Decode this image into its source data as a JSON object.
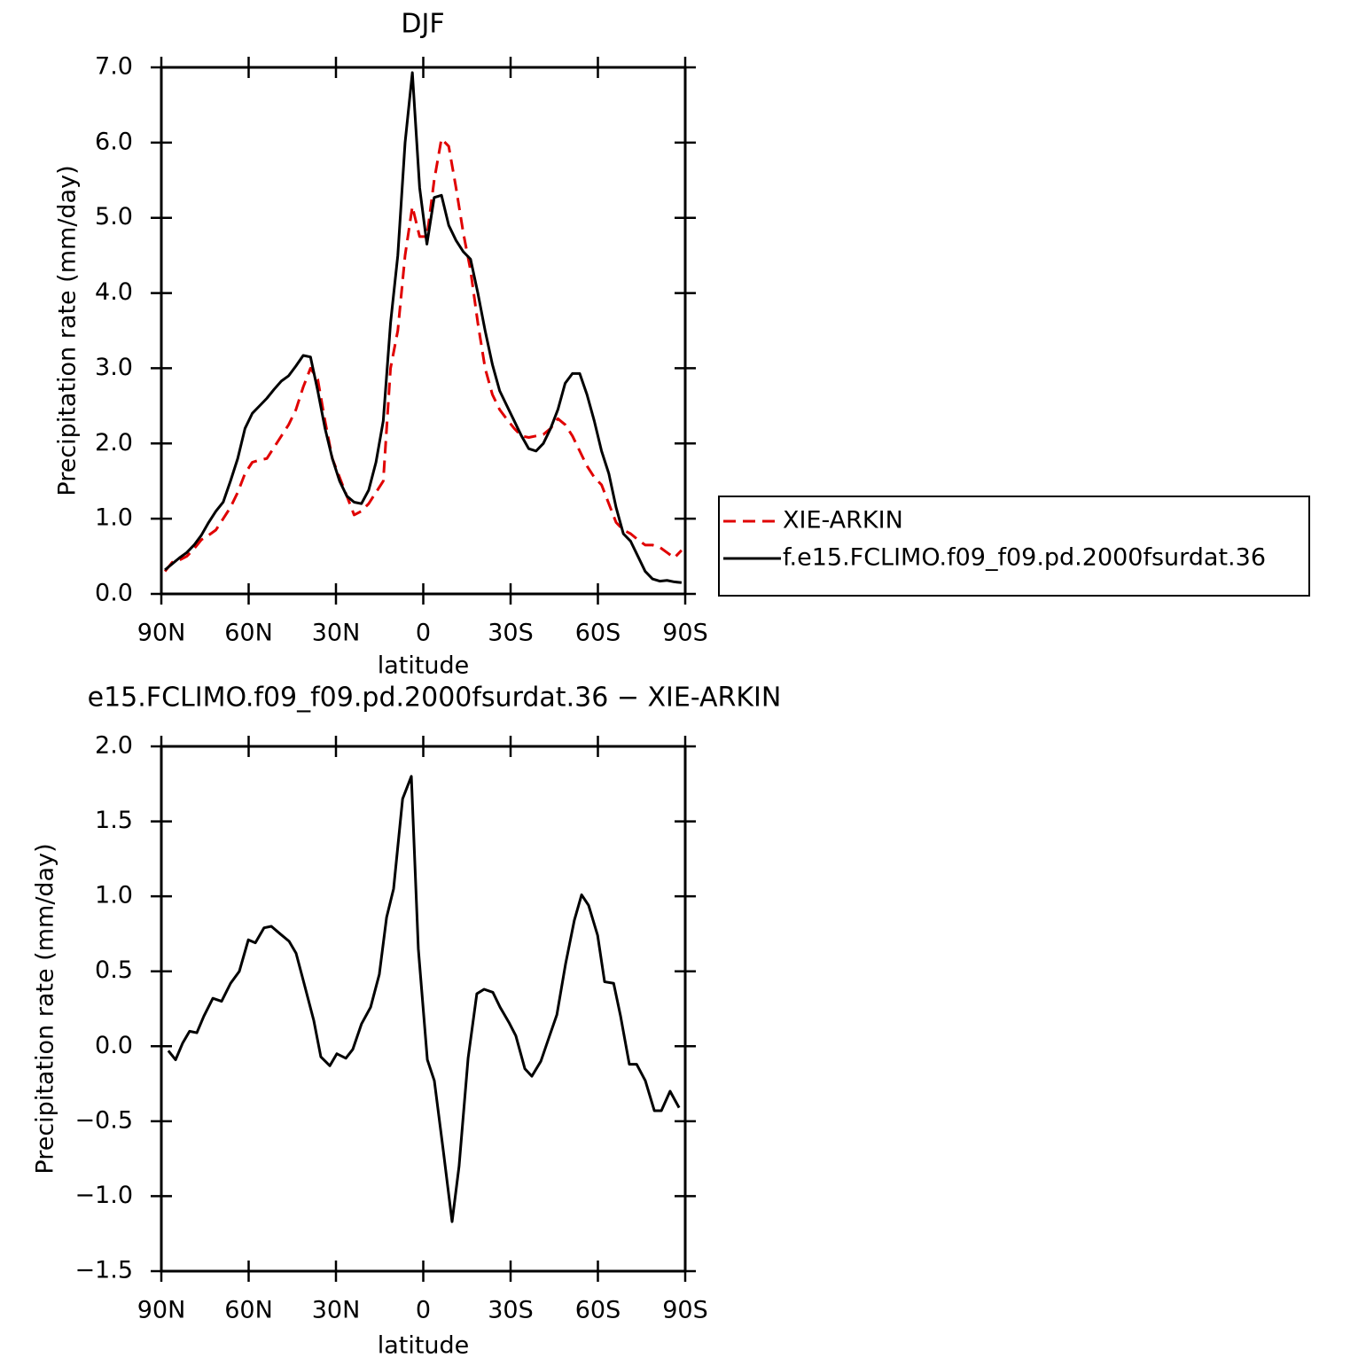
{
  "chart_data": [
    {
      "type": "line",
      "title": "DJF",
      "xlabel": "latitude",
      "ylabel": "Precipitation rate (mm/day)",
      "x": [
        88.75,
        86.25,
        83.75,
        81.25,
        78.75,
        76.25,
        73.75,
        71.25,
        68.75,
        66.25,
        63.75,
        61.25,
        58.75,
        56.25,
        53.75,
        51.25,
        48.75,
        46.25,
        43.75,
        41.25,
        38.75,
        36.25,
        33.75,
        31.25,
        28.75,
        26.25,
        23.75,
        21.25,
        18.75,
        16.25,
        13.75,
        11.25,
        8.75,
        6.25,
        3.75,
        1.25,
        -1.25,
        -3.75,
        -6.25,
        -8.75,
        -11.25,
        -13.75,
        -16.25,
        -18.75,
        -21.25,
        -23.75,
        -26.25,
        -28.75,
        -31.25,
        -33.75,
        -36.25,
        -38.75,
        -41.25,
        -43.75,
        -46.25,
        -48.75,
        -51.25,
        -53.75,
        -56.25,
        -58.75,
        -61.25,
        -63.75,
        -66.25,
        -68.75,
        -71.25,
        -73.75,
        -76.25,
        -78.75,
        -81.25,
        -83.75,
        -86.25,
        -88.75
      ],
      "series": [
        {
          "name": "XIE-ARKIN",
          "color": "#e00000",
          "dash": true,
          "values": [
            0.3,
            0.42,
            0.45,
            0.5,
            0.6,
            0.72,
            0.78,
            0.85,
            1.0,
            1.15,
            1.35,
            1.6,
            1.75,
            1.78,
            1.8,
            1.95,
            2.1,
            2.25,
            2.45,
            2.75,
            3.0,
            2.85,
            2.3,
            1.8,
            1.55,
            1.3,
            1.05,
            1.1,
            1.2,
            1.35,
            1.5,
            3.0,
            3.5,
            4.5,
            5.15,
            4.75,
            4.75,
            5.5,
            6.05,
            5.95,
            5.4,
            4.8,
            4.3,
            3.6,
            3.0,
            2.65,
            2.45,
            2.32,
            2.2,
            2.1,
            2.08,
            2.1,
            2.12,
            2.2,
            2.33,
            2.25,
            2.1,
            1.9,
            1.7,
            1.55,
            1.45,
            1.2,
            0.95,
            0.85,
            0.8,
            0.72,
            0.65,
            0.65,
            0.62,
            0.55,
            0.48,
            0.58
          ]
        },
        {
          "name": "f.e15.FCLIMO.f09_f09.pd.2000fsurdat.36",
          "color": "#000000",
          "dash": false,
          "values": [
            0.32,
            0.4,
            0.48,
            0.55,
            0.65,
            0.78,
            0.95,
            1.1,
            1.22,
            1.5,
            1.8,
            2.2,
            2.4,
            2.5,
            2.6,
            2.72,
            2.83,
            2.9,
            3.03,
            3.17,
            3.15,
            2.7,
            2.2,
            1.8,
            1.5,
            1.3,
            1.22,
            1.2,
            1.38,
            1.75,
            2.3,
            3.6,
            4.5,
            6.0,
            6.93,
            5.4,
            4.65,
            5.27,
            5.3,
            4.9,
            4.7,
            4.55,
            4.45,
            4.0,
            3.5,
            3.05,
            2.7,
            2.5,
            2.3,
            2.1,
            1.93,
            1.9,
            2.0,
            2.2,
            2.45,
            2.8,
            2.93,
            2.93,
            2.65,
            2.3,
            1.9,
            1.6,
            1.15,
            0.8,
            0.7,
            0.5,
            0.3,
            0.2,
            0.17,
            0.18,
            0.16,
            0.15
          ]
        }
      ],
      "xlim": [
        90,
        -90
      ],
      "xticks": [
        {
          "value": 90,
          "label": "90N"
        },
        {
          "value": 60,
          "label": "60N"
        },
        {
          "value": 30,
          "label": "30N"
        },
        0,
        {
          "value": -30,
          "label": "30S"
        },
        {
          "value": -60,
          "label": "60S"
        },
        {
          "value": -90,
          "label": "90S"
        }
      ],
      "ylim": [
        0,
        7
      ],
      "yticks": [
        {
          "value": 0,
          "label": "0.0"
        },
        {
          "value": 1,
          "label": "1.0"
        },
        {
          "value": 2,
          "label": "2.0"
        },
        {
          "value": 3,
          "label": "3.0"
        },
        {
          "value": 4,
          "label": "4.0"
        },
        {
          "value": 5,
          "label": "5.0"
        },
        {
          "value": 6,
          "label": "6.0"
        },
        {
          "value": 7,
          "label": "7.0"
        }
      ],
      "legend": "right"
    },
    {
      "type": "line",
      "title": "e15.FCLIMO.f09_f09.pd.2000fsurdat.36 − XIE-ARKIN",
      "xlabel": "latitude",
      "ylabel": "Precipitation rate (mm/day)",
      "x": [
        87.6,
        85.1,
        82.7,
        80.3,
        77.8,
        75.4,
        72.3,
        69.3,
        66.2,
        63.2,
        60.1,
        57.7,
        54.7,
        52.2,
        49.2,
        46.1,
        43.7,
        40.7,
        37.6,
        35.2,
        32.1,
        29.7,
        26.6,
        24.2,
        21.2,
        18.1,
        15.1,
        12.6,
        10.2,
        7.1,
        4.1,
        1.7,
        -1.4,
        -3.8,
        -6.9,
        -9.9,
        -12.3,
        -15.4,
        -18.4,
        -20.9,
        -23.9,
        -26.4,
        -29.4,
        -31.8,
        -34.9,
        -37.3,
        -40.4,
        -43.4,
        -45.9,
        -48.9,
        -51.9,
        -54.4,
        -56.8,
        -59.9,
        -62.3,
        -65.4,
        -67.8,
        -70.8,
        -73.3,
        -76.3,
        -79.4,
        -81.8,
        -84.8,
        -87.9
      ],
      "series": [
        {
          "color": "#000000",
          "dash": false,
          "values": [
            -0.03,
            -0.09,
            0.02,
            0.1,
            0.09,
            0.2,
            0.32,
            0.3,
            0.42,
            0.5,
            0.71,
            0.69,
            0.79,
            0.8,
            0.75,
            0.7,
            0.62,
            0.4,
            0.17,
            -0.07,
            -0.13,
            -0.05,
            -0.08,
            -0.02,
            0.15,
            0.26,
            0.48,
            0.86,
            1.05,
            1.65,
            1.8,
            0.65,
            -0.09,
            -0.23,
            -0.7,
            -1.17,
            -0.8,
            -0.08,
            0.35,
            0.38,
            0.36,
            0.26,
            0.16,
            0.07,
            -0.15,
            -0.2,
            -0.1,
            0.07,
            0.21,
            0.55,
            0.84,
            1.01,
            0.94,
            0.74,
            0.43,
            0.42,
            0.2,
            -0.12,
            -0.12,
            -0.23,
            -0.43,
            -0.43,
            -0.3,
            -0.41
          ]
        }
      ],
      "xlim": [
        90,
        -90
      ],
      "xticks": [
        {
          "value": 90,
          "label": "90N"
        },
        {
          "value": 60,
          "label": "60N"
        },
        {
          "value": 30,
          "label": "30N"
        },
        0,
        {
          "value": -30,
          "label": "30S"
        },
        {
          "value": -60,
          "label": "60S"
        },
        {
          "value": -90,
          "label": "90S"
        }
      ],
      "ylim": [
        -1.5,
        2
      ],
      "yticks": [
        {
          "value": -1.5,
          "label": "−1.5"
        },
        {
          "value": -1,
          "label": "−1.0"
        },
        {
          "value": -0.5,
          "label": "−0.5"
        },
        {
          "value": 0,
          "label": "0.0"
        },
        0.5,
        {
          "value": 1,
          "label": "1.0"
        },
        1.5,
        {
          "value": 2,
          "label": "2.0"
        }
      ]
    }
  ]
}
